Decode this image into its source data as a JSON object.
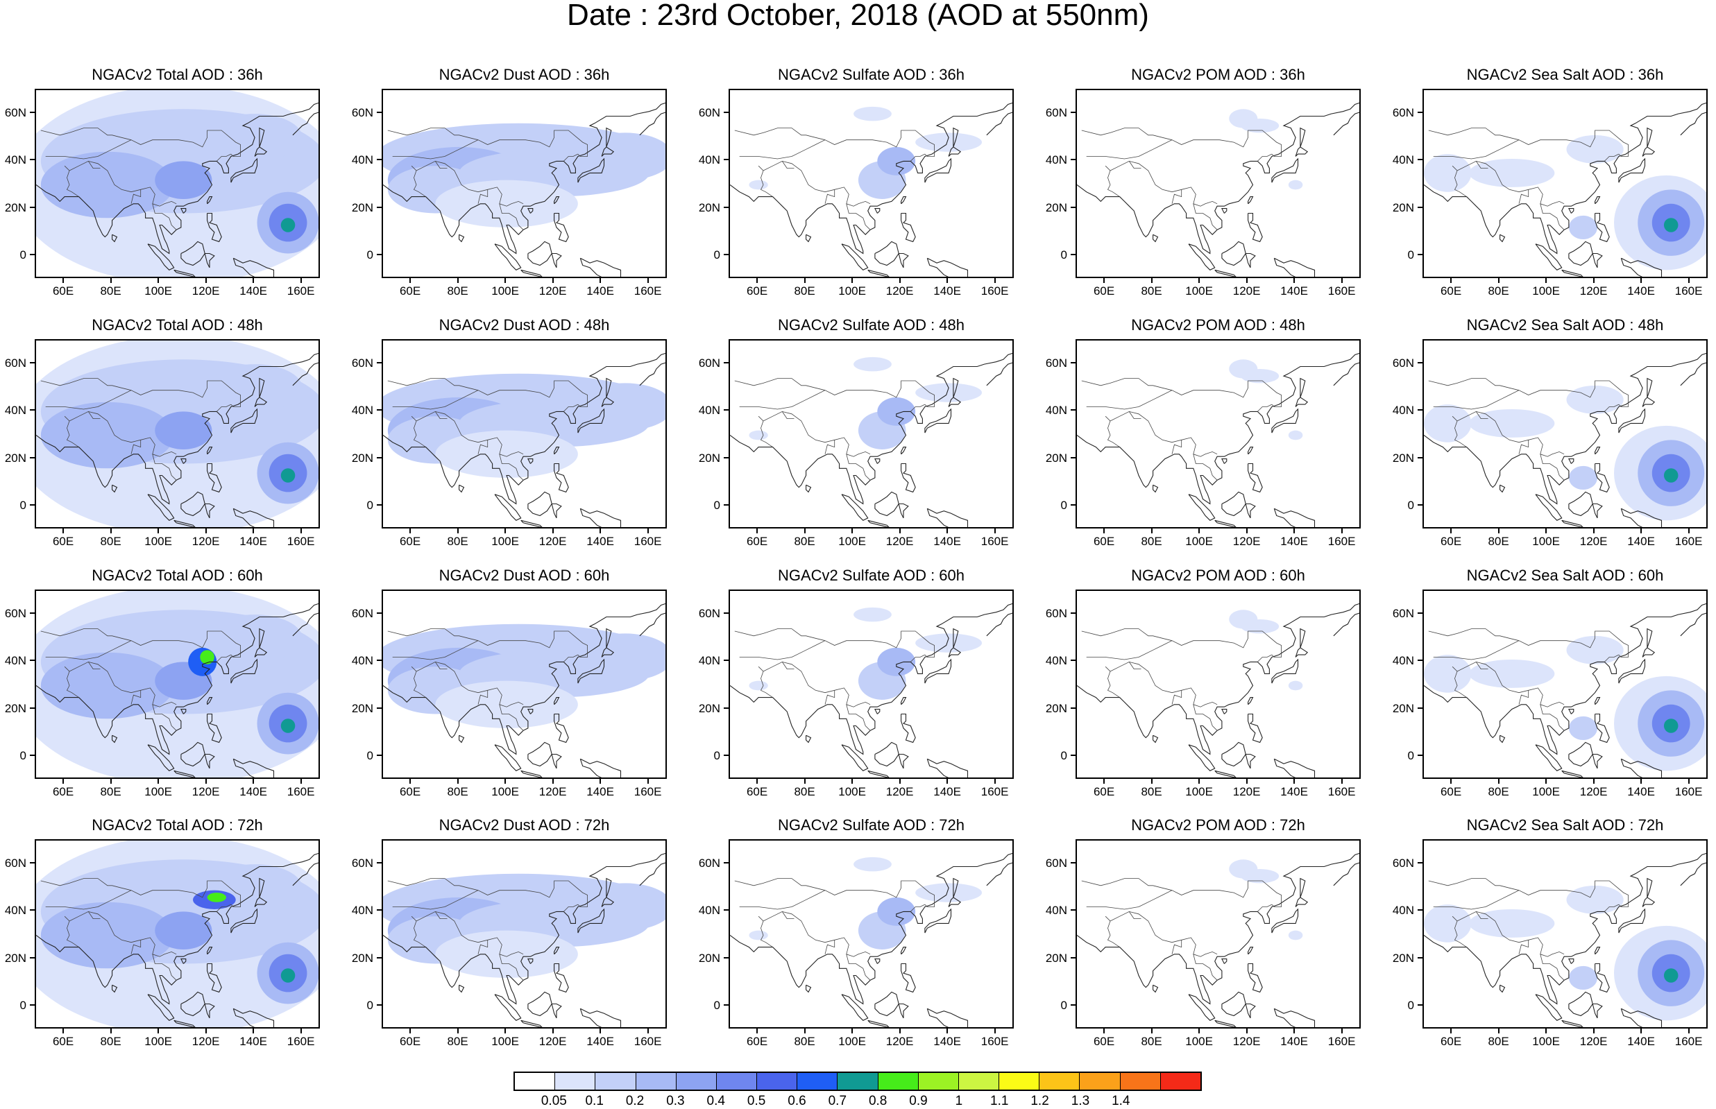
{
  "title": "Date : 23rd October, 2018 (AOD at 550nm)",
  "panels": [
    [
      "NGACv2 Total AOD : 36h",
      "NGACv2 Dust AOD : 36h",
      "NGACv2 Sulfate AOD : 36h",
      "NGACv2 POM AOD : 36h",
      "NGACv2 Sea Salt AOD : 36h"
    ],
    [
      "NGACv2 Total AOD : 48h",
      "NGACv2 Dust AOD : 48h",
      "NGACv2 Sulfate AOD : 48h",
      "NGACv2 POM AOD : 48h",
      "NGACv2 Sea Salt AOD : 48h"
    ],
    [
      "NGACv2 Total AOD : 60h",
      "NGACv2 Dust AOD : 60h",
      "NGACv2 Sulfate AOD : 60h",
      "NGACv2 POM AOD : 60h",
      "NGACv2 Sea Salt AOD : 60h"
    ],
    [
      "NGACv2 Total AOD : 72h",
      "NGACv2 Dust AOD : 72h",
      "NGACv2 Sulfate AOD : 72h",
      "NGACv2 POM AOD : 72h",
      "NGACv2 Sea Salt  AOD : 72h"
    ]
  ],
  "lat_labels": [
    "60N",
    "40N",
    "20N",
    "0"
  ],
  "lon_labels": [
    "60E",
    "80E",
    "100E",
    "120E",
    "140E",
    "160E"
  ],
  "colorbar": {
    "labels": [
      "0.05",
      "0.1",
      "0.2",
      "0.3",
      "0.4",
      "0.5",
      "0.6",
      "0.7",
      "0.8",
      "0.9",
      "1",
      "1.1",
      "1.2",
      "1.3",
      "1.4"
    ],
    "colors": [
      "#ffffff",
      "#dce4fb",
      "#c3d0f8",
      "#a8baf5",
      "#8da3f2",
      "#6f86ef",
      "#4a64ec",
      "#1f5ef5",
      "#109a93",
      "#46ec1a",
      "#9cf224",
      "#ccf542",
      "#fbfb16",
      "#fcc418",
      "#fba11a",
      "#f87419",
      "#f42a18"
    ]
  }
}
